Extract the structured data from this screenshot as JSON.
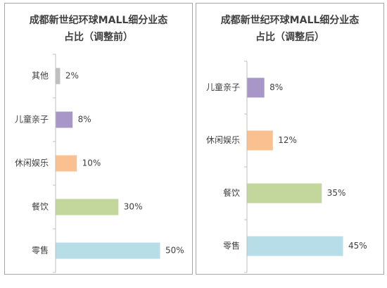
{
  "chart_data": [
    {
      "type": "bar",
      "orientation": "horizontal",
      "title_line1": "成都新世纪环球MALL细分业态",
      "title_line2": "占比（调整前）",
      "categories": [
        "其他",
        "儿童亲子",
        "休闲娱乐",
        "餐饮",
        "零售"
      ],
      "values": [
        2,
        8,
        10,
        30,
        50
      ],
      "value_labels": [
        "2%",
        "8%",
        "10%",
        "30%",
        "50%"
      ],
      "colors": [
        "#bfbfbf",
        "#a996c9",
        "#fac090",
        "#c3d69b",
        "#b7dee8"
      ],
      "xlim": [
        0,
        50
      ],
      "grid": false,
      "legend": "none"
    },
    {
      "type": "bar",
      "orientation": "horizontal",
      "title_line1": "成都新世纪环球MALL细分业态",
      "title_line2": "占比（调整后）",
      "categories": [
        "儿童亲子",
        "休闲娱乐",
        "餐饮",
        "零售"
      ],
      "values": [
        8,
        12,
        35,
        45
      ],
      "value_labels": [
        "8%",
        "12%",
        "35%",
        "45%"
      ],
      "colors": [
        "#a996c9",
        "#fac090",
        "#c3d69b",
        "#b7dee8"
      ],
      "xlim": [
        0,
        45
      ],
      "grid": false,
      "legend": "none"
    }
  ]
}
